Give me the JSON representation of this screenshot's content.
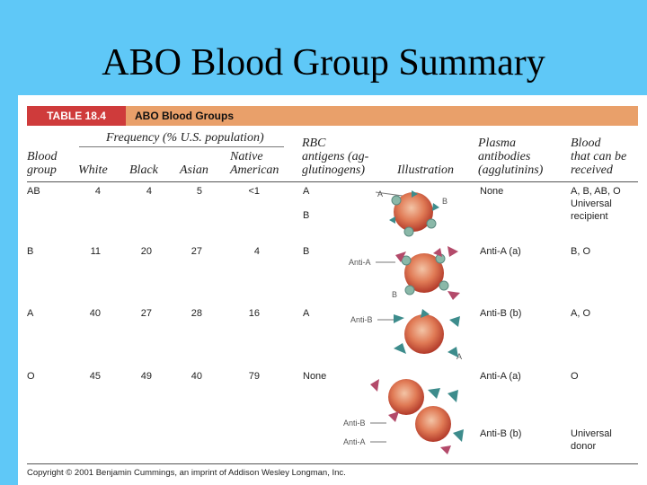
{
  "slide_title": "ABO Blood Group Summary",
  "table": {
    "label": "TABLE 18.4",
    "title": "ABO Blood Groups",
    "headers": {
      "frequency": "Frequency (% U.S. population)",
      "blood_group": [
        "Blood",
        "group"
      ],
      "white": "White",
      "black": "Black",
      "asian": "Asian",
      "native": [
        "Native",
        "American"
      ],
      "rbc": [
        "RBC",
        "antigens (ag-",
        "glutinogens)"
      ],
      "illustration": "Illustration",
      "plasma": [
        "Plasma",
        "antibodies",
        "(agglutinins)"
      ],
      "received": [
        "Blood",
        "that can be",
        "received"
      ]
    },
    "rows": [
      {
        "group": "AB",
        "white": "4",
        "black": "4",
        "asian": "5",
        "native": "<1",
        "antigens": [
          "A",
          "B"
        ],
        "antibodies": "None",
        "received": [
          "A, B, AB, O",
          "Universal",
          "recipient"
        ]
      },
      {
        "group": "B",
        "white": "11",
        "black": "20",
        "asian": "27",
        "native": "4",
        "antigens": [
          "B"
        ],
        "antibodies": "Anti-A (a)",
        "received": [
          "B, O"
        ]
      },
      {
        "group": "A",
        "white": "40",
        "black": "27",
        "asian": "28",
        "native": "16",
        "antigens": [
          "A"
        ],
        "antibodies": "Anti-B (b)",
        "received": [
          "A, O"
        ]
      },
      {
        "group": "O",
        "white": "45",
        "black": "49",
        "asian": "40",
        "native": "79",
        "antigens": [
          "None"
        ],
        "antibodies": "Anti-A (a)",
        "received": [
          "O"
        ]
      }
    ],
    "o_extra": {
      "antibodies": "Anti-B (b)",
      "received": [
        "Universal",
        "donor"
      ]
    },
    "illustration_labels": {
      "a": "A",
      "b": "B",
      "anti_a": "Anti-A",
      "anti_b": "Anti-B"
    },
    "copyright": "Copyright © 2001 Benjamin Cummings, an imprint of Addison Wesley Longman, Inc."
  }
}
